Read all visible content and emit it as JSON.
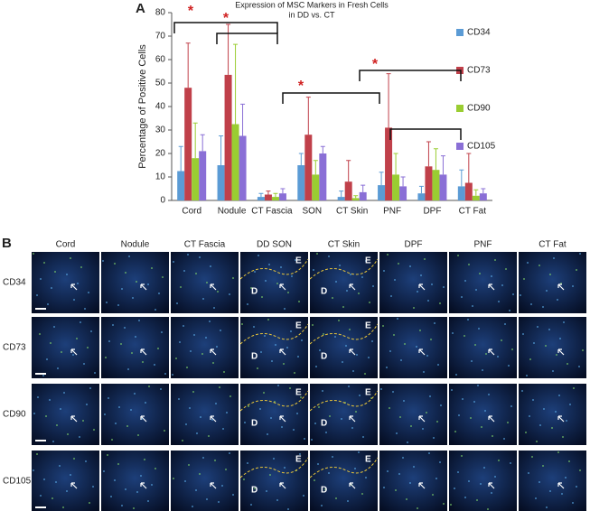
{
  "panel_labels": [
    "A",
    "B"
  ],
  "chart_data": {
    "type": "bar",
    "title": [
      "Expression of MSC Markers in Fresh Cells",
      "in DD vs. CT"
    ],
    "ylabel": "Percentage of Positive Cells",
    "categories": [
      "Cord",
      "Nodule",
      "CT Fascia",
      "SON",
      "CT Skin",
      "PNF",
      "DPF",
      "CT Fat"
    ],
    "series": [
      {
        "name": "CD34",
        "color": "#5b9bd5",
        "values": [
          12.5,
          15,
          1.5,
          15,
          1.5,
          6.5,
          3,
          6
        ],
        "errors": [
          10.5,
          12.5,
          1.5,
          5,
          2.5,
          5.5,
          3,
          7
        ]
      },
      {
        "name": "CD73",
        "color": "#c0404a",
        "values": [
          48,
          53.5,
          2.5,
          28,
          8,
          31,
          14.5,
          7.5
        ],
        "errors": [
          19,
          21.5,
          1.5,
          16,
          9,
          23,
          10.5,
          12.5
        ]
      },
      {
        "name": "CD90",
        "color": "#9acd32",
        "values": [
          18,
          32.5,
          1.5,
          11,
          1,
          11,
          13,
          2
        ],
        "errors": [
          15,
          34,
          1.5,
          6,
          1,
          9,
          9,
          2.5
        ]
      },
      {
        "name": "CD105",
        "color": "#8a6fd6",
        "values": [
          21,
          27.5,
          3,
          20,
          3.5,
          6,
          11,
          3
        ],
        "errors": [
          7,
          13.5,
          2,
          3,
          3,
          4,
          8,
          2
        ]
      }
    ],
    "ylim": [
      0,
      80
    ],
    "yticks": [
      0,
      10,
      20,
      30,
      40,
      50,
      60,
      70,
      80
    ],
    "legend": "right",
    "annotations": [
      "*",
      "*",
      "*",
      "*"
    ]
  },
  "micrographs": {
    "columns": [
      "Cord",
      "Nodule",
      "CT Fascia",
      "DD SON",
      "CT Skin",
      "DPF",
      "PNF",
      "CT Fat"
    ],
    "rows": [
      "CD34",
      "CD73",
      "CD90",
      "CD105"
    ],
    "tile_labels": [
      [
        [
          "E",
          "D"
        ],
        [
          "E",
          "D"
        ]
      ],
      [
        [
          "E",
          "D"
        ],
        [
          "E",
          "D"
        ]
      ],
      [
        [
          "E",
          "D"
        ],
        [
          "E",
          "D"
        ]
      ],
      [
        [
          "E",
          "D"
        ],
        [
          "E",
          "D"
        ]
      ]
    ]
  }
}
